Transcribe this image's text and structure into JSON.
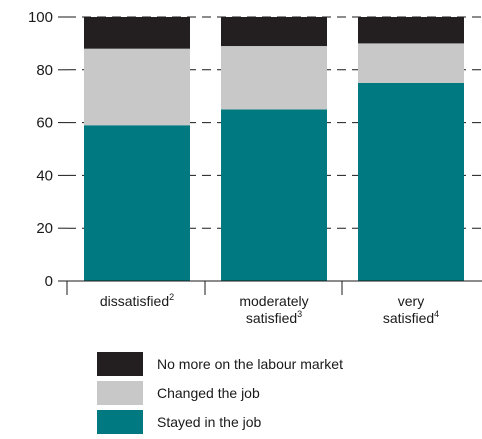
{
  "chart_data": {
    "type": "bar",
    "stacked": true,
    "categories": [
      {
        "label": "dissatisfied",
        "sup": "2"
      },
      {
        "label": "moderately satisfied",
        "sup": "3"
      },
      {
        "label": "very satisfied",
        "sup": "4"
      }
    ],
    "series": [
      {
        "name": "Stayed in the job",
        "color": "#007a80",
        "values": [
          59,
          65,
          75
        ]
      },
      {
        "name": "Changed the job",
        "color": "#c8c8c8",
        "values": [
          29,
          24,
          15
        ]
      },
      {
        "name": "No more on the labour market",
        "color": "#231f20",
        "values": [
          12,
          11,
          10
        ]
      }
    ],
    "ylim": [
      0,
      100
    ],
    "yticks": [
      0,
      20,
      40,
      60,
      80,
      100
    ],
    "grid": "dashed horizontal",
    "legend_position": "bottom",
    "legend_order": [
      "No more on the labour market",
      "Changed the job",
      "Stayed in the job"
    ]
  }
}
